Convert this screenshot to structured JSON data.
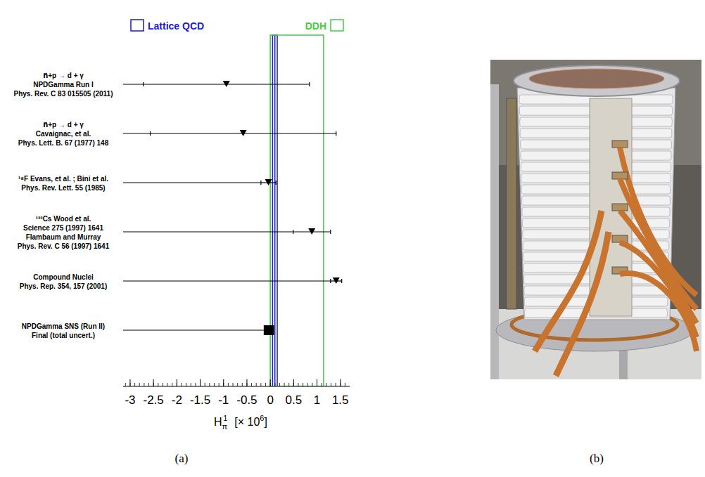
{
  "chart_data": {
    "type": "scatter",
    "orientation": "horizontal",
    "categories": [
      "n⃗+p → d + γ\nNPDGamma Run I\nPhys. Rev. C 83 015505 (2011)",
      "n⃗+p → d + γ\nCavaignac, et al.\nPhys. Lett. B. 67 (1977) 148",
      "¹⁸F Evans, et al. ; Bini et al.\nPhys. Rev. Lett. 55 (1985)",
      "¹³³Cs Wood et al.\nScience 275 (1997) 1641\nFlambaum and Murray\nPhys. Rev. C 56 (1997) 1641",
      "Compound Nuclei\nPhys. Rep. 354, 157 (2001)",
      "NPDGamma SNS (Run II)\nFinal (total uncert.)"
    ],
    "series": [
      {
        "marker": "triangle_down",
        "color": "#000000",
        "values": [
          -0.94,
          -0.58,
          -0.04,
          0.89,
          1.41,
          null
        ],
        "errors": [
          1.78,
          1.99,
          0.16,
          0.4,
          0.12,
          null
        ]
      },
      {
        "marker": "square",
        "color": "#000000",
        "values": [
          null,
          null,
          null,
          null,
          null,
          -0.03
        ],
        "errors": [
          null,
          null,
          null,
          null,
          null,
          0.11
        ]
      }
    ],
    "bands": [
      {
        "name": "Lattice QCD",
        "color": "#1a1acc",
        "low": 0.049,
        "center": 0.099,
        "high": 0.149
      },
      {
        "name": "DDH",
        "color": "#44cc44",
        "low": 0,
        "high": 1.14
      }
    ],
    "legend": "top",
    "xlabel": {
      "base": "H",
      "sub": "π",
      "sup": "1",
      "unit": "[× 10",
      "unit_sup": "6",
      "unit_end": "]"
    },
    "xlim": [
      -3.15,
      1.7
    ],
    "xticks": [
      -3,
      -2.5,
      -2,
      -1.5,
      -1,
      -0.5,
      0,
      0.5,
      1,
      1.5
    ],
    "minor_xticks": [
      -3.1,
      -3,
      -2.9,
      -2.8,
      -2.7,
      -2.6,
      -2.5,
      -2.4,
      -2.3,
      -2.2,
      -2.1,
      -2,
      -1.9,
      -1.8,
      -1.7,
      -1.6,
      -1.5,
      -1.4,
      -1.3,
      -1.2,
      -1.1,
      -1,
      -0.9,
      -0.8,
      -0.7,
      -0.6,
      -0.5,
      -0.4,
      -0.3,
      -0.2,
      -0.1,
      0,
      0.1,
      0.2,
      0.3,
      0.4,
      0.5,
      0.6,
      0.7,
      0.8,
      0.9,
      1,
      1.1,
      1.2,
      1.3,
      1.4,
      1.5,
      1.6
    ],
    "grid": false
  },
  "panel_labels": [
    "(a)",
    "(b)"
  ]
}
